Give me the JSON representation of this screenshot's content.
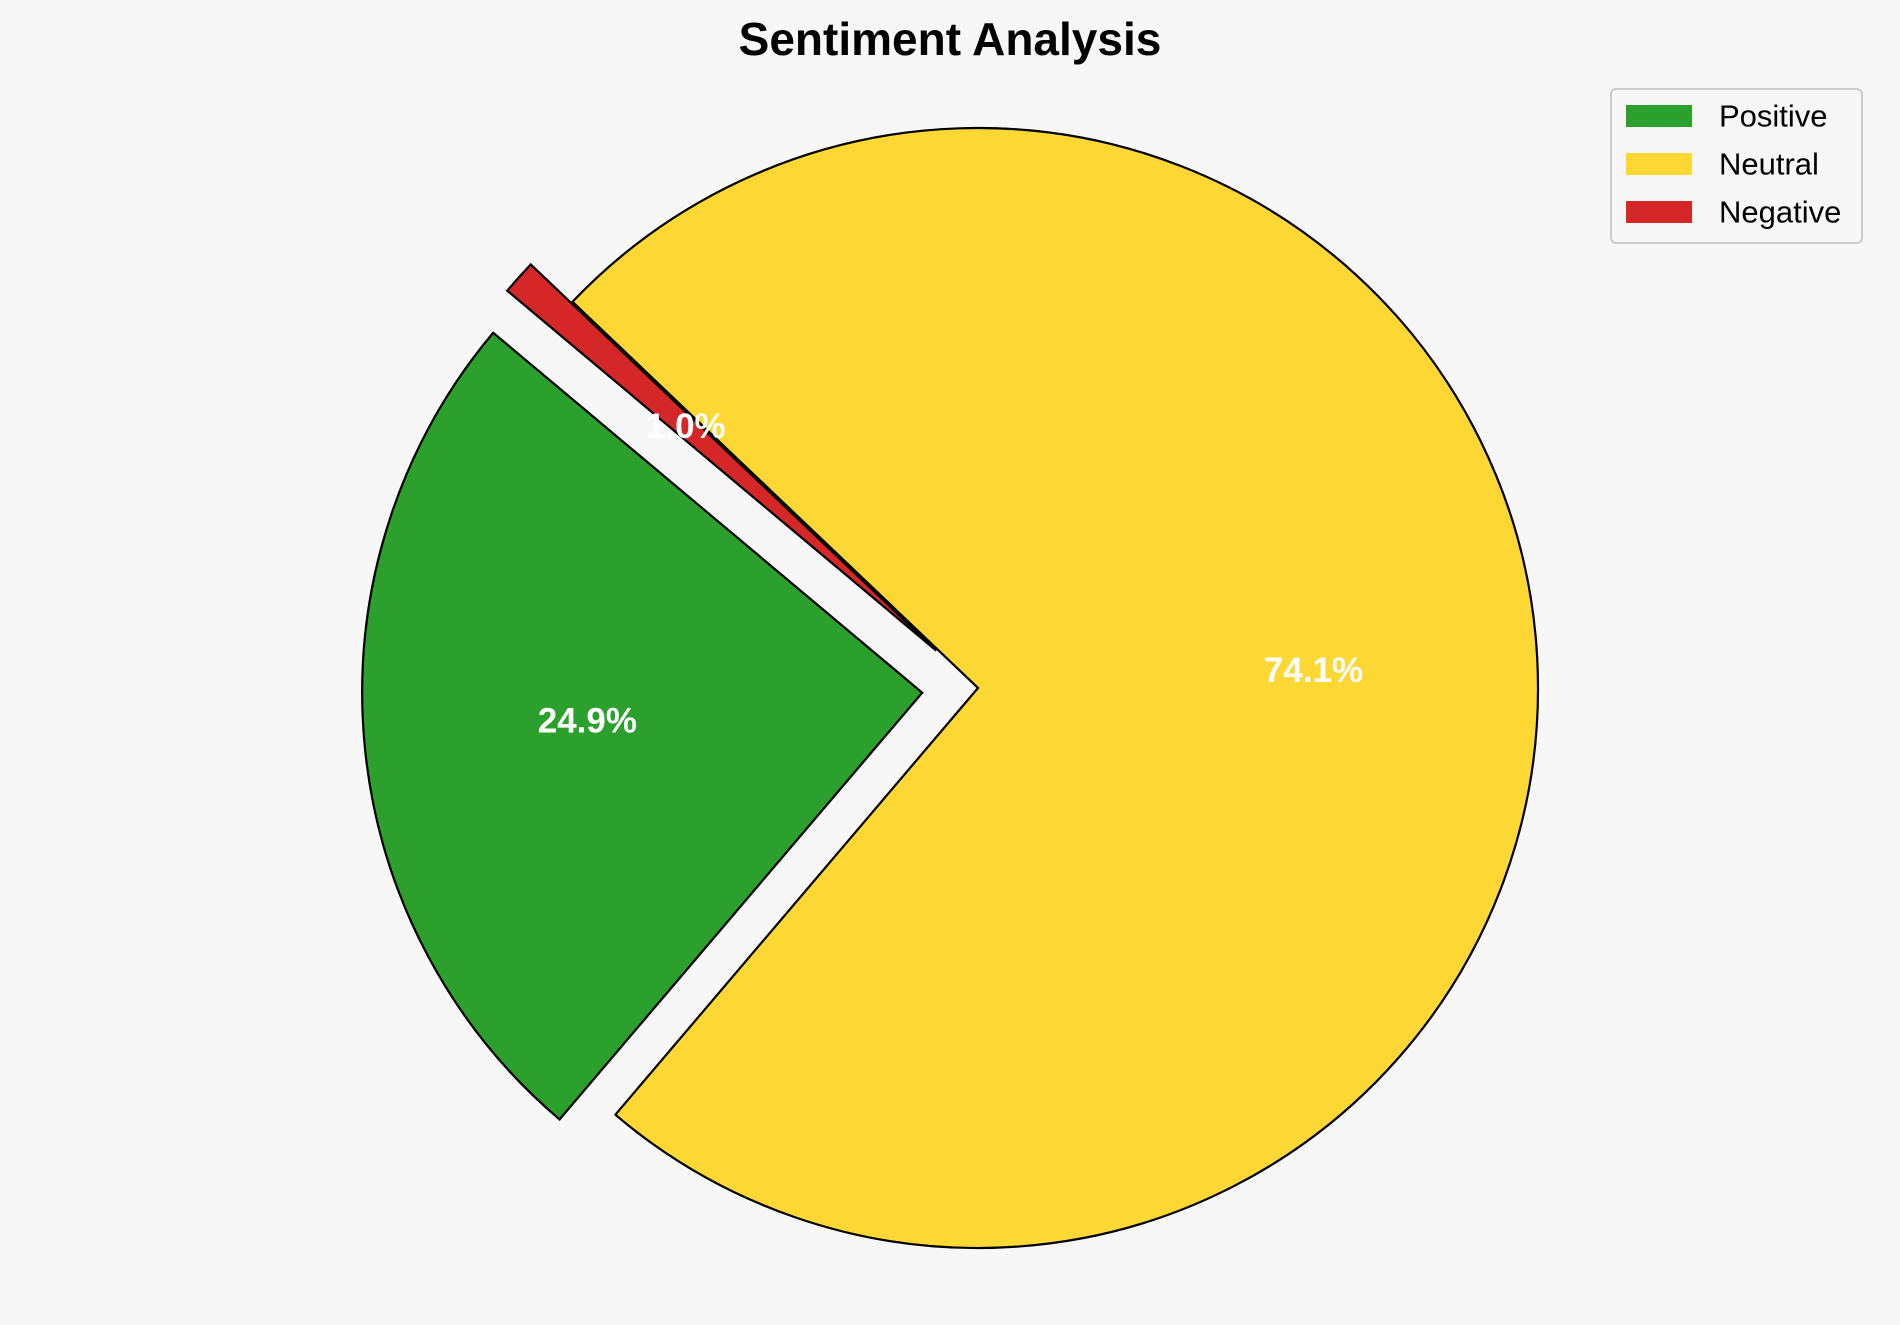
{
  "chart_data": {
    "type": "pie",
    "title": "Sentiment Analysis",
    "legend_position": "top-right",
    "start_angle_deg": 140,
    "direction": "counterclockwise",
    "slices": [
      {
        "name": "Positive",
        "value": 24.9,
        "label": "24.9%",
        "color": "#2ca02c",
        "exploded": true
      },
      {
        "name": "Neutral",
        "value": 74.1,
        "label": "74.1%",
        "color": "#fdd835",
        "exploded": false
      },
      {
        "name": "Negative",
        "value": 1.0,
        "label": "1.0%",
        "color": "#d62728",
        "exploded": true
      }
    ]
  }
}
